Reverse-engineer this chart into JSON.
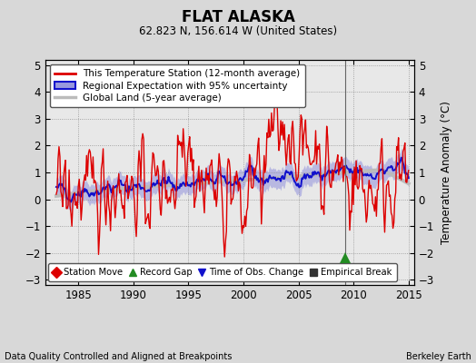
{
  "title": "FLAT ALASKA",
  "subtitle": "62.823 N, 156.614 W (United States)",
  "ylabel": "Temperature Anomaly (°C)",
  "xlabel_left": "Data Quality Controlled and Aligned at Breakpoints",
  "xlabel_right": "Berkeley Earth",
  "xlim": [
    1982.0,
    2015.5
  ],
  "ylim": [
    -3.2,
    5.2
  ],
  "yticks": [
    -3,
    -2,
    -1,
    0,
    1,
    2,
    3,
    4,
    5
  ],
  "xticks": [
    1985,
    1990,
    1995,
    2000,
    2005,
    2010,
    2015
  ],
  "bg_color": "#d8d8d8",
  "plot_bg_color": "#e8e8e8",
  "station_color": "#dd0000",
  "regional_color": "#1111cc",
  "regional_fill_color": "#9999dd",
  "global_color": "#bbbbbb",
  "vertical_line_x": 2009.25,
  "legend_items": [
    "This Temperature Station (12-month average)",
    "Regional Expectation with 95% uncertainty",
    "Global Land (5-year average)"
  ],
  "marker_items": [
    {
      "label": "Station Move",
      "color": "#dd0000",
      "marker": "D"
    },
    {
      "label": "Record Gap",
      "color": "#228B22",
      "marker": "^"
    },
    {
      "label": "Time of Obs. Change",
      "color": "#1111cc",
      "marker": "v"
    },
    {
      "label": "Empirical Break",
      "color": "#333333",
      "marker": "s"
    }
  ],
  "record_gap_x": 2009.25,
  "record_gap_y": -2.2
}
